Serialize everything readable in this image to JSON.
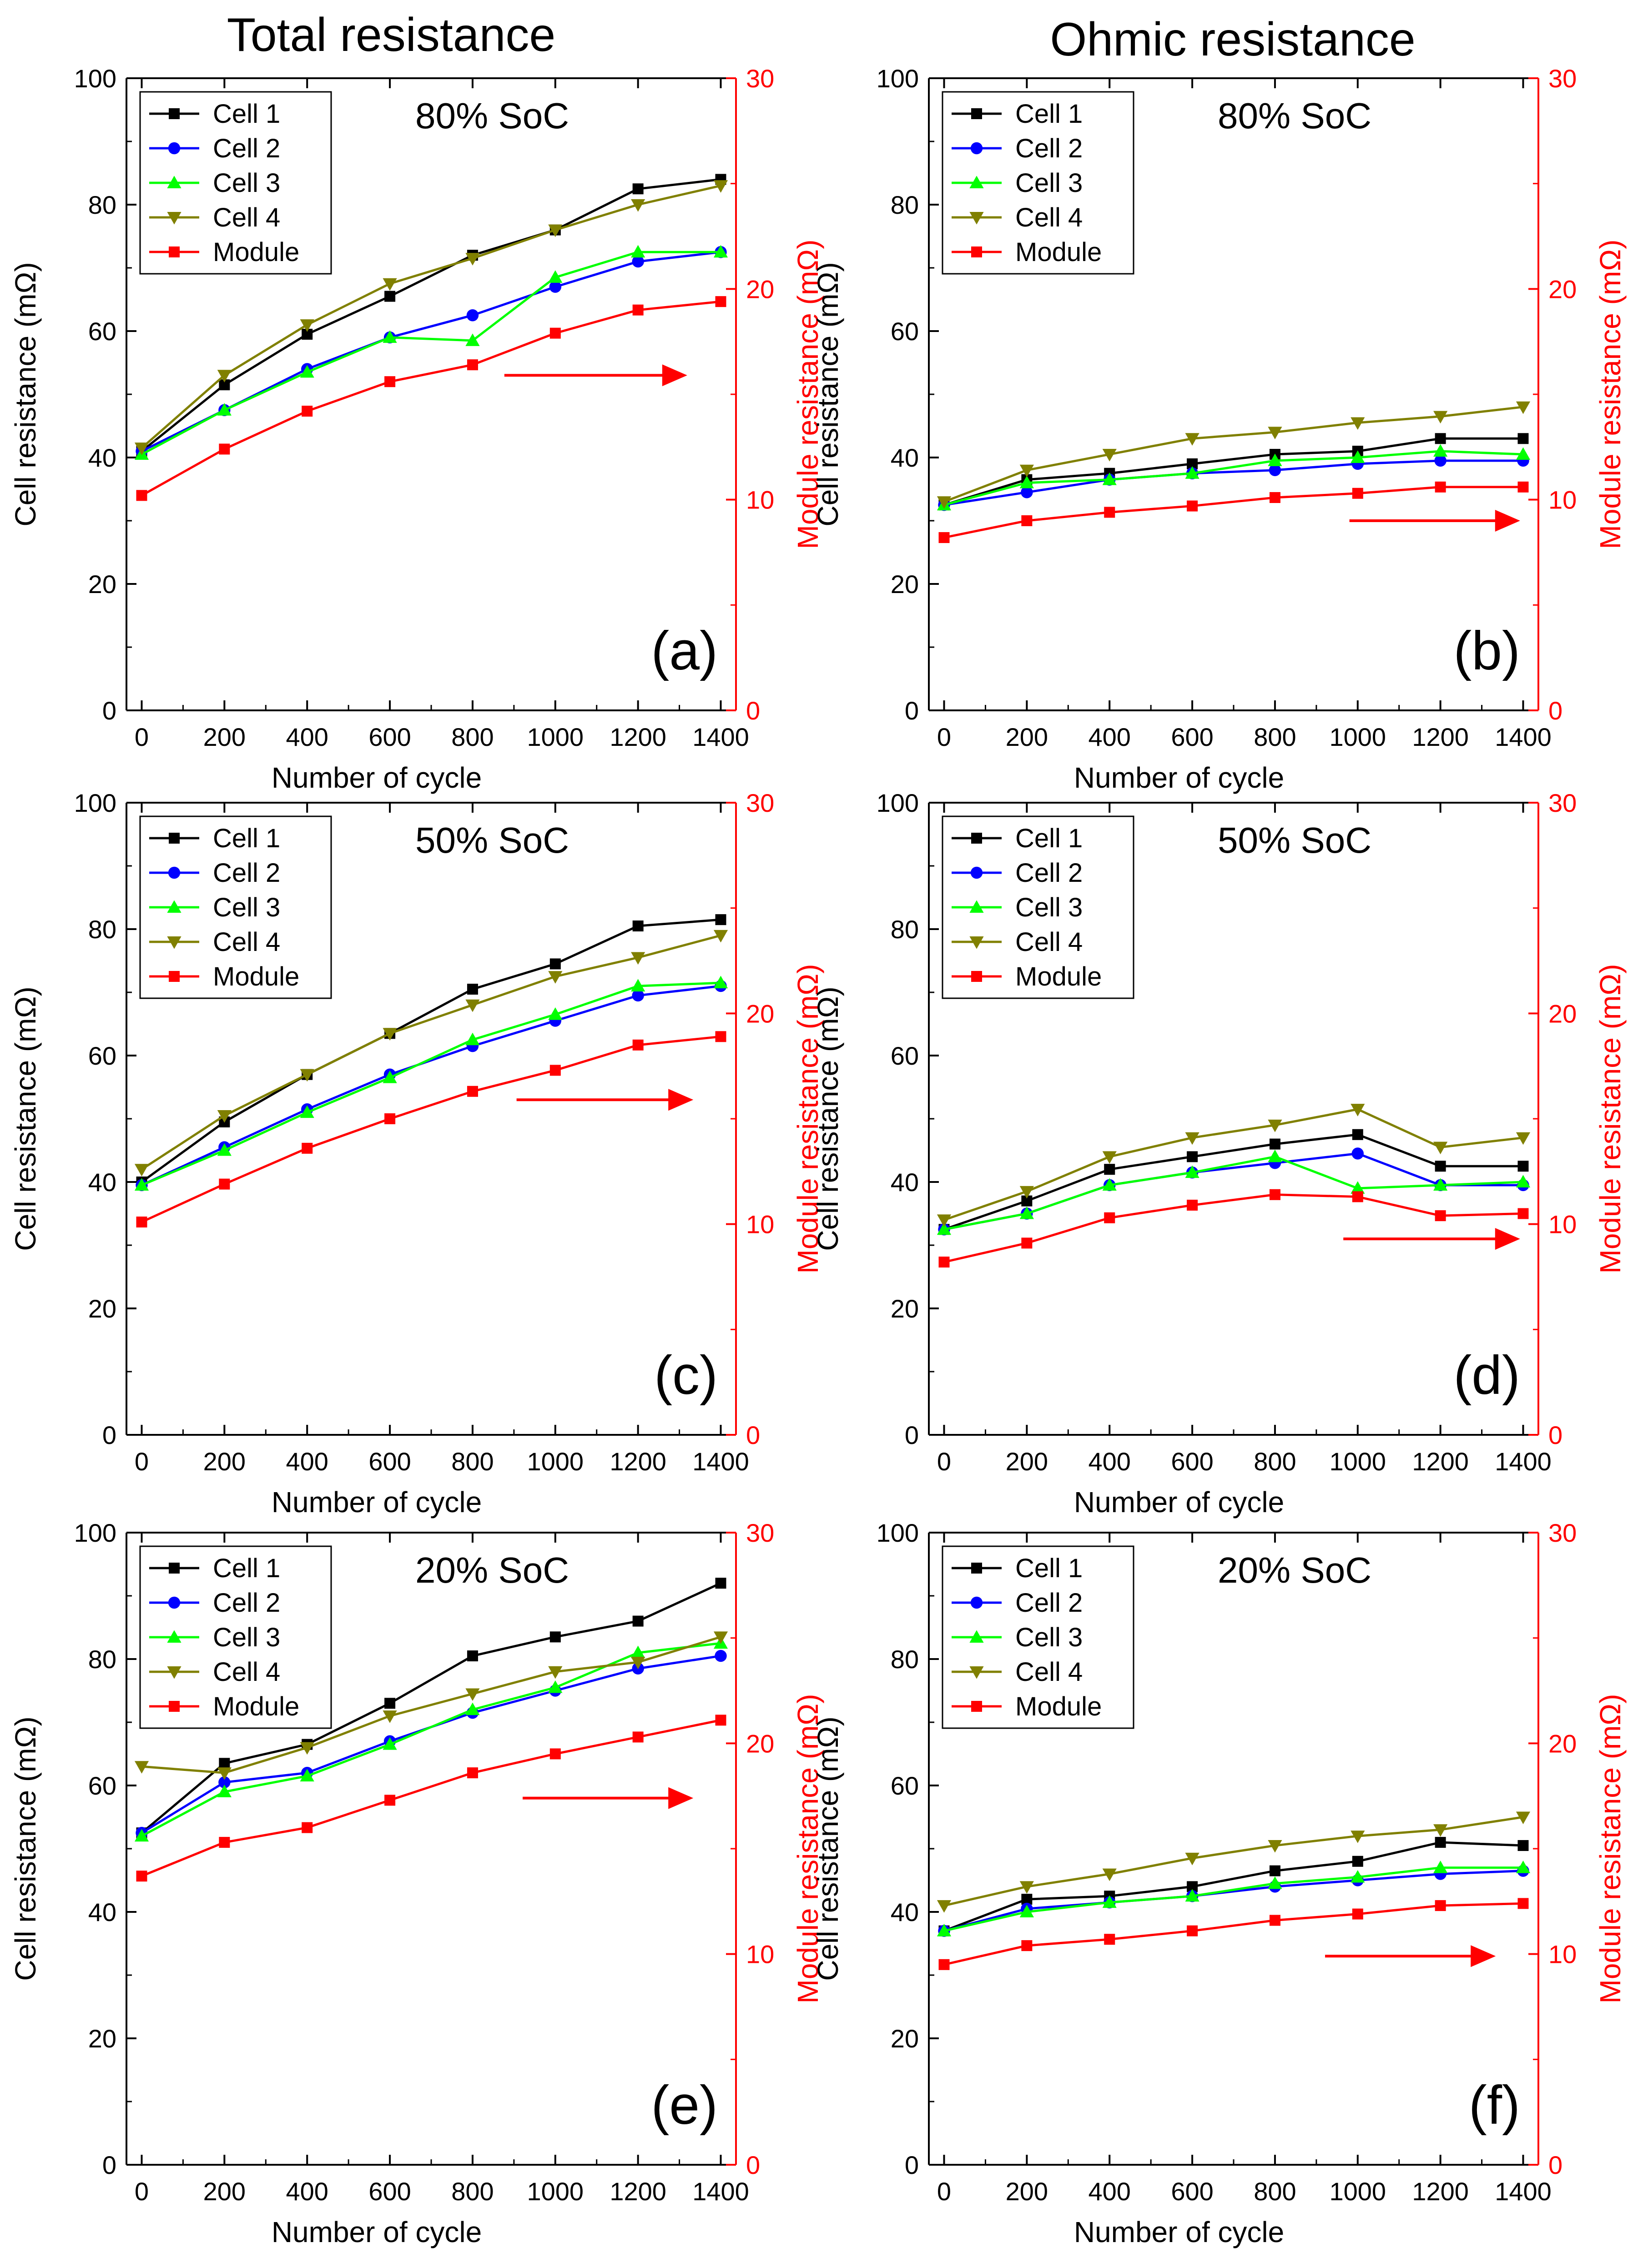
{
  "figure": {
    "column_titles": [
      "Total resistance",
      "Ohmic resistance"
    ],
    "colors": {
      "cell1": "#000000",
      "cell2": "#0000ff",
      "cell3": "#00ff00",
      "cell4": "#808000",
      "module": "#ff0000",
      "axis_right": "#ff0000",
      "axis_left": "#000000"
    }
  },
  "chart_data": [
    {
      "type": "line",
      "panel": "(a)",
      "annotation": "80% SoC",
      "xlabel": "Number of cycle",
      "ylabel": "Cell resistance (mΩ)",
      "y2label": "Module resistance (mΩ)",
      "x": [
        0,
        200,
        400,
        600,
        800,
        1000,
        1200,
        1400
      ],
      "xlim": [
        0,
        1400
      ],
      "xticks": [
        0,
        200,
        400,
        600,
        800,
        1000,
        1200,
        1400
      ],
      "ylim": [
        0,
        100
      ],
      "yticks": [
        0,
        20,
        40,
        60,
        80,
        100
      ],
      "y2lim": [
        0,
        30
      ],
      "y2ticks": [
        0,
        10,
        20,
        30
      ],
      "legend_position": "top-left",
      "series": [
        {
          "name": "Cell 1",
          "axis": "left",
          "marker": "square",
          "values": [
            41,
            51.5,
            59.5,
            65.5,
            72,
            76,
            82.5,
            84
          ]
        },
        {
          "name": "Cell 2",
          "axis": "left",
          "marker": "circle",
          "values": [
            41,
            47.5,
            54,
            59,
            62.5,
            67,
            71,
            72.5
          ]
        },
        {
          "name": "Cell 3",
          "axis": "left",
          "marker": "triangle-up",
          "values": [
            40.5,
            47.5,
            53.5,
            59,
            58.5,
            68.5,
            72.5,
            72.5
          ]
        },
        {
          "name": "Cell 4",
          "axis": "left",
          "marker": "triangle-down",
          "values": [
            41.5,
            53,
            61,
            67.5,
            71.5,
            76,
            80,
            83
          ]
        },
        {
          "name": "Module",
          "axis": "right",
          "marker": "square",
          "values": [
            10.2,
            12.4,
            14.2,
            15.6,
            16.4,
            17.9,
            19,
            19.4
          ]
        }
      ]
    },
    {
      "type": "line",
      "panel": "(b)",
      "annotation": "80% SoC",
      "xlabel": "Number of cycle",
      "ylabel": "Cell resistance (mΩ)",
      "y2label": "Module resistance (mΩ)",
      "x": [
        0,
        200,
        400,
        600,
        800,
        1000,
        1200,
        1400
      ],
      "xlim": [
        0,
        1400
      ],
      "xticks": [
        0,
        200,
        400,
        600,
        800,
        1000,
        1200,
        1400
      ],
      "ylim": [
        0,
        100
      ],
      "yticks": [
        0,
        20,
        40,
        60,
        80,
        100
      ],
      "y2lim": [
        0,
        30
      ],
      "y2ticks": [
        0,
        10,
        20,
        30
      ],
      "legend_position": "top-left",
      "series": [
        {
          "name": "Cell 1",
          "axis": "left",
          "marker": "square",
          "values": [
            32.5,
            36.5,
            37.5,
            39,
            40.5,
            41,
            43,
            43
          ]
        },
        {
          "name": "Cell 2",
          "axis": "left",
          "marker": "circle",
          "values": [
            32.5,
            34.5,
            36.5,
            37.5,
            38,
            39,
            39.5,
            39.5
          ]
        },
        {
          "name": "Cell 3",
          "axis": "left",
          "marker": "triangle-up",
          "values": [
            32.5,
            36,
            36.5,
            37.5,
            39.5,
            40,
            41,
            40.5
          ]
        },
        {
          "name": "Cell 4",
          "axis": "left",
          "marker": "triangle-down",
          "values": [
            33,
            38,
            40.5,
            43,
            44,
            45.5,
            46.5,
            48
          ]
        },
        {
          "name": "Module",
          "axis": "right",
          "marker": "square",
          "values": [
            8.2,
            9,
            9.4,
            9.7,
            10.1,
            10.3,
            10.6,
            10.6
          ]
        }
      ]
    },
    {
      "type": "line",
      "panel": "(c)",
      "annotation": "50% SoC",
      "xlabel": "Number of cycle",
      "ylabel": "Cell resistance (mΩ)",
      "y2label": "Module resistance (mΩ)",
      "x": [
        0,
        200,
        400,
        600,
        800,
        1000,
        1200,
        1400
      ],
      "xlim": [
        0,
        1400
      ],
      "xticks": [
        0,
        200,
        400,
        600,
        800,
        1000,
        1200,
        1400
      ],
      "ylim": [
        0,
        100
      ],
      "yticks": [
        0,
        20,
        40,
        60,
        80,
        100
      ],
      "y2lim": [
        0,
        30
      ],
      "y2ticks": [
        0,
        10,
        20,
        30
      ],
      "legend_position": "top-left",
      "series": [
        {
          "name": "Cell 1",
          "axis": "left",
          "marker": "square",
          "values": [
            40,
            49.5,
            57,
            63.5,
            70.5,
            74.5,
            80.5,
            81.5
          ]
        },
        {
          "name": "Cell 2",
          "axis": "left",
          "marker": "circle",
          "values": [
            39.5,
            45.5,
            51.5,
            57,
            61.5,
            65.5,
            69.5,
            71
          ]
        },
        {
          "name": "Cell 3",
          "axis": "left",
          "marker": "triangle-up",
          "values": [
            39.5,
            45,
            51,
            56.5,
            62.5,
            66.5,
            71,
            71.5
          ]
        },
        {
          "name": "Cell 4",
          "axis": "left",
          "marker": "triangle-down",
          "values": [
            42,
            50.5,
            57,
            63.5,
            68,
            72.5,
            75.5,
            79
          ]
        },
        {
          "name": "Module",
          "axis": "right",
          "marker": "square",
          "values": [
            10.1,
            11.9,
            13.6,
            15,
            16.3,
            17.3,
            18.5,
            18.9
          ]
        }
      ]
    },
    {
      "type": "line",
      "panel": "(d)",
      "annotation": "50% SoC",
      "xlabel": "Number of cycle",
      "ylabel": "Cell resistance (mΩ)",
      "y2label": "Module resistance (mΩ)",
      "x": [
        0,
        200,
        400,
        600,
        800,
        1000,
        1200,
        1400
      ],
      "xlim": [
        0,
        1400
      ],
      "xticks": [
        0,
        200,
        400,
        600,
        800,
        1000,
        1200,
        1400
      ],
      "ylim": [
        0,
        100
      ],
      "yticks": [
        0,
        20,
        40,
        60,
        80,
        100
      ],
      "y2lim": [
        0,
        30
      ],
      "y2ticks": [
        0,
        10,
        20,
        30
      ],
      "legend_position": "top-left",
      "series": [
        {
          "name": "Cell 1",
          "axis": "left",
          "marker": "square",
          "values": [
            32.5,
            37,
            42,
            44,
            46,
            47.5,
            42.5,
            42.5
          ]
        },
        {
          "name": "Cell 2",
          "axis": "left",
          "marker": "circle",
          "values": [
            32.5,
            35,
            39.5,
            41.5,
            43,
            44.5,
            39.5,
            39.5
          ]
        },
        {
          "name": "Cell 3",
          "axis": "left",
          "marker": "triangle-up",
          "values": [
            32.5,
            35,
            39.5,
            41.5,
            44,
            39,
            39.5,
            40
          ]
        },
        {
          "name": "Cell 4",
          "axis": "left",
          "marker": "triangle-down",
          "values": [
            34,
            38.5,
            44,
            47,
            49,
            51.5,
            45.5,
            47
          ]
        },
        {
          "name": "Module",
          "axis": "right",
          "marker": "square",
          "values": [
            8.2,
            9.1,
            10.3,
            10.9,
            11.4,
            11.3,
            10.4,
            10.5
          ]
        }
      ]
    },
    {
      "type": "line",
      "panel": "(e)",
      "annotation": "20% SoC",
      "xlabel": "Number of cycle",
      "ylabel": "Cell resistance (mΩ)",
      "y2label": "Module resistance (mΩ)",
      "x": [
        0,
        200,
        400,
        600,
        800,
        1000,
        1200,
        1400
      ],
      "xlim": [
        0,
        1400
      ],
      "xticks": [
        0,
        200,
        400,
        600,
        800,
        1000,
        1200,
        1400
      ],
      "ylim": [
        0,
        100
      ],
      "yticks": [
        0,
        20,
        40,
        60,
        80,
        100
      ],
      "y2lim": [
        0,
        30
      ],
      "y2ticks": [
        0,
        10,
        20,
        30
      ],
      "legend_position": "top-left",
      "series": [
        {
          "name": "Cell 1",
          "axis": "left",
          "marker": "square",
          "values": [
            52.5,
            63.5,
            66.5,
            73,
            80.5,
            83.5,
            86,
            92
          ]
        },
        {
          "name": "Cell 2",
          "axis": "left",
          "marker": "circle",
          "values": [
            52.5,
            60.5,
            62,
            67,
            71.5,
            75,
            78.5,
            80.5
          ]
        },
        {
          "name": "Cell 3",
          "axis": "left",
          "marker": "triangle-up",
          "values": [
            52,
            59,
            61.5,
            66.5,
            72,
            75.5,
            81,
            82.5
          ]
        },
        {
          "name": "Cell 4",
          "axis": "left",
          "marker": "triangle-down",
          "values": [
            63,
            62,
            66,
            71,
            74.5,
            78,
            79.5,
            83.5
          ]
        },
        {
          "name": "Module",
          "axis": "right",
          "marker": "square",
          "values": [
            13.7,
            15.3,
            16,
            17.3,
            18.6,
            19.5,
            20.3,
            21.1
          ]
        }
      ]
    },
    {
      "type": "line",
      "panel": "(f)",
      "annotation": "20% SoC",
      "xlabel": "Number of cycle",
      "ylabel": "Cell resistance (mΩ)",
      "y2label": "Module resistance (mΩ)",
      "x": [
        0,
        200,
        400,
        600,
        800,
        1000,
        1200,
        1400
      ],
      "xlim": [
        0,
        1400
      ],
      "xticks": [
        0,
        200,
        400,
        600,
        800,
        1000,
        1200,
        1400
      ],
      "ylim": [
        0,
        100
      ],
      "yticks": [
        0,
        20,
        40,
        60,
        80,
        100
      ],
      "y2lim": [
        0,
        30
      ],
      "y2ticks": [
        0,
        10,
        20,
        30
      ],
      "legend_position": "top-left",
      "series": [
        {
          "name": "Cell 1",
          "axis": "left",
          "marker": "square",
          "values": [
            37,
            42,
            42.5,
            44,
            46.5,
            48,
            51,
            50.5
          ]
        },
        {
          "name": "Cell 2",
          "axis": "left",
          "marker": "circle",
          "values": [
            37,
            40.5,
            41.5,
            42.5,
            44,
            45,
            46,
            46.5
          ]
        },
        {
          "name": "Cell 3",
          "axis": "left",
          "marker": "triangle-up",
          "values": [
            37,
            40,
            41.5,
            42.5,
            44.5,
            45.5,
            47,
            47
          ]
        },
        {
          "name": "Cell 4",
          "axis": "left",
          "marker": "triangle-down",
          "values": [
            41,
            44,
            46,
            48.5,
            50.5,
            52,
            53,
            55
          ]
        },
        {
          "name": "Module",
          "axis": "right",
          "marker": "square",
          "values": [
            9.5,
            10.4,
            10.7,
            11.1,
            11.6,
            11.9,
            12.3,
            12.4
          ]
        }
      ]
    }
  ]
}
